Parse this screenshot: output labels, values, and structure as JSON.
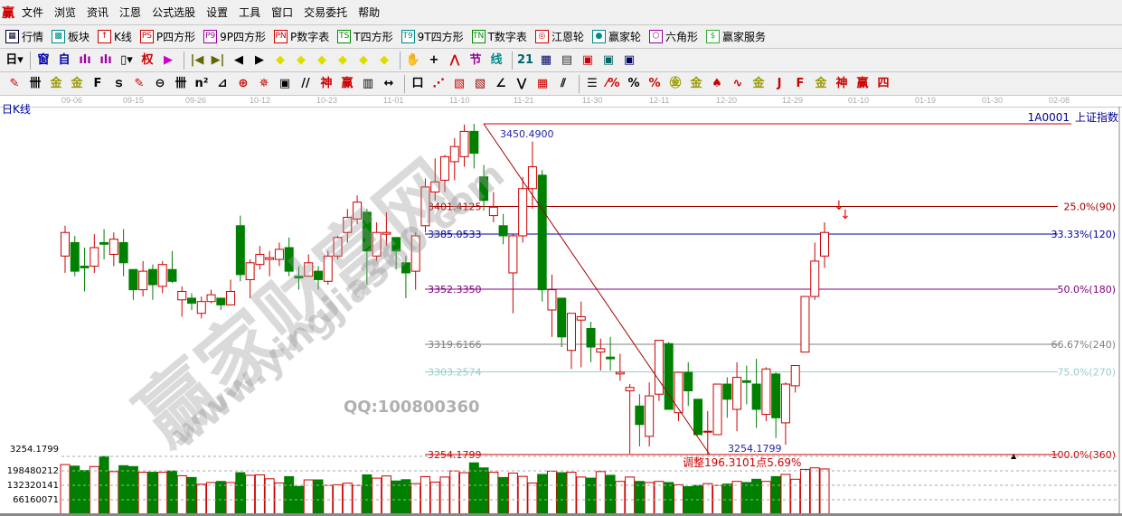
{
  "menu": {
    "logo": "赢",
    "items": [
      "文件",
      "浏览",
      "资讯",
      "江恩",
      "公式选股",
      "设置",
      "工具",
      "窗口",
      "交易委托",
      "帮助"
    ]
  },
  "toolbar1": [
    {
      "icon": "table-icon",
      "glyph": "▦",
      "color": "#003",
      "label": "行情"
    },
    {
      "icon": "blocks-icon",
      "glyph": "▩",
      "color": "#088",
      "label": "板块"
    },
    {
      "icon": "kline-icon",
      "glyph": "↑",
      "color": "#c00",
      "label": "K线"
    },
    {
      "icon": "ps-icon",
      "glyph": "PS",
      "color": "#c00",
      "label": "P四方形"
    },
    {
      "icon": "p9-icon",
      "glyph": "P9",
      "color": "#909",
      "label": "9P四方形"
    },
    {
      "icon": "pn-icon",
      "glyph": "PN",
      "color": "#c00",
      "label": "P数字表"
    },
    {
      "icon": "ts-icon",
      "glyph": "TS",
      "color": "#080",
      "label": "T四方形"
    },
    {
      "icon": "t9-icon",
      "glyph": "T9",
      "color": "#088",
      "label": "9T四方形"
    },
    {
      "icon": "tn-icon",
      "glyph": "TN",
      "color": "#080",
      "label": "T数字表"
    },
    {
      "icon": "gann-wheel-icon",
      "glyph": "◎",
      "color": "#c00",
      "label": "江恩轮"
    },
    {
      "icon": "winner-wheel-icon",
      "glyph": "●",
      "color": "#088",
      "label": "赢家轮"
    },
    {
      "icon": "hexagon-icon",
      "glyph": "⬡",
      "color": "#909",
      "label": "六角形"
    },
    {
      "icon": "dollar-icon",
      "glyph": "$",
      "color": "#3a3",
      "label": "赢家服务"
    }
  ],
  "toolbar2": [
    {
      "icon": "period-day-dropdown",
      "glyph": "日▾",
      "color": "#000"
    },
    {
      "icon": "window-icon",
      "glyph": "窗",
      "color": "#00a"
    },
    {
      "icon": "self-icon",
      "glyph": "自",
      "color": "#00a"
    },
    {
      "icon": "bars3-icon",
      "glyph": "ılı",
      "color": "#909"
    },
    {
      "icon": "bars9-icon",
      "glyph": "ılı",
      "color": "#909"
    },
    {
      "icon": "candle-dropdown",
      "glyph": "▯▾",
      "color": "#000"
    },
    {
      "icon": "rights-icon",
      "glyph": "权",
      "color": "#c00"
    },
    {
      "icon": "flag-icon",
      "glyph": "▶",
      "color": "#c0c"
    },
    {
      "icon": "first-icon",
      "glyph": "|◀",
      "color": "#660"
    },
    {
      "icon": "last-icon",
      "glyph": "▶|",
      "color": "#660"
    },
    {
      "icon": "prev-icon",
      "glyph": "◀",
      "color": "#000"
    },
    {
      "icon": "next-icon",
      "glyph": "▶",
      "color": "#000"
    },
    {
      "icon": "left-diamond-icon",
      "glyph": "◆",
      "color": "#dd0"
    },
    {
      "icon": "right-diamond-icon",
      "glyph": "◆",
      "color": "#dd0"
    },
    {
      "icon": "expand-diamond-icon",
      "glyph": "◆",
      "color": "#dd0"
    },
    {
      "icon": "shrink-diamond-icon",
      "glyph": "◆",
      "color": "#dd0"
    },
    {
      "icon": "zoom-in-diamond-icon",
      "glyph": "◆",
      "color": "#dd0"
    },
    {
      "icon": "zoom-out-diamond-icon",
      "glyph": "◆",
      "color": "#dd0"
    },
    {
      "icon": "hand-icon",
      "glyph": "✋",
      "color": "#000"
    },
    {
      "icon": "crosshair-icon",
      "glyph": "+",
      "color": "#000"
    },
    {
      "icon": "line-icon",
      "glyph": "⋀",
      "color": "#c00"
    },
    {
      "icon": "section-icon",
      "glyph": "节",
      "color": "#909"
    },
    {
      "icon": "line-style-icon",
      "glyph": "线",
      "color": "#088"
    },
    {
      "icon": "calendar-icon",
      "glyph": "21",
      "color": "#066"
    },
    {
      "icon": "calculator-icon",
      "glyph": "▦",
      "color": "#006"
    },
    {
      "icon": "notes-icon",
      "glyph": "▤",
      "color": "#333"
    },
    {
      "icon": "save-icon",
      "glyph": "▣",
      "color": "#c00"
    },
    {
      "icon": "network-icon",
      "glyph": "▣",
      "color": "#066"
    },
    {
      "icon": "print-icon",
      "glyph": "▣",
      "color": "#006"
    }
  ],
  "toolbar3": [
    {
      "icon": "pen-icon",
      "glyph": "✎",
      "color": "#c00"
    },
    {
      "icon": "grid-lines-icon",
      "glyph": "卌",
      "color": "#000"
    },
    {
      "icon": "gold1-icon",
      "glyph": "金",
      "color": "#990"
    },
    {
      "icon": "gold2-icon",
      "glyph": "金",
      "color": "#990"
    },
    {
      "icon": "f-icon",
      "glyph": "F",
      "color": "#000"
    },
    {
      "icon": "spiral-icon",
      "glyph": "ട",
      "color": "#000"
    },
    {
      "icon": "pen-scale-icon",
      "glyph": "✎",
      "color": "#c00"
    },
    {
      "icon": "circle-grid-icon",
      "glyph": "⊖",
      "color": "#000"
    },
    {
      "icon": "lines-icon",
      "glyph": "卌",
      "color": "#000"
    },
    {
      "icon": "n2-icon",
      "glyph": "n²",
      "color": "#000"
    },
    {
      "icon": "angle-icon",
      "glyph": "⊿",
      "color": "#000"
    },
    {
      "icon": "target-icon",
      "glyph": "⊕",
      "color": "#c00"
    },
    {
      "icon": "star-icon",
      "glyph": "✵",
      "color": "#c00"
    },
    {
      "icon": "square-icon",
      "glyph": "▣",
      "color": "#000"
    },
    {
      "icon": "parallel-icon",
      "glyph": "//",
      "color": "#000"
    },
    {
      "icon": "god-icon",
      "glyph": "神",
      "color": "#c00"
    },
    {
      "icon": "win-icon",
      "glyph": "赢",
      "color": "#c00"
    },
    {
      "icon": "calendar-grid-icon",
      "glyph": "▥",
      "color": "#000"
    },
    {
      "icon": "width-icon",
      "glyph": "↔",
      "color": "#000"
    },
    {
      "icon": "box-icon",
      "glyph": "口",
      "color": "#000"
    },
    {
      "icon": "fan-icon",
      "glyph": "⋰",
      "color": "#c00"
    },
    {
      "icon": "box-fan-icon",
      "glyph": "▧",
      "color": "#c00"
    },
    {
      "icon": "box-fan2-icon",
      "glyph": "▧",
      "color": "#900"
    },
    {
      "icon": "angle-fan-icon",
      "glyph": "∠",
      "color": "#000"
    },
    {
      "icon": "wave-icon",
      "glyph": "⋁",
      "color": "#000"
    },
    {
      "icon": "grid-icon",
      "glyph": "▦",
      "color": "#c00"
    },
    {
      "icon": "slash-lines-icon",
      "glyph": "⫽",
      "color": "#000"
    },
    {
      "icon": "ruler-icon",
      "glyph": "☰",
      "color": "#000"
    },
    {
      "icon": "percent-fan-icon",
      "glyph": "⁄%",
      "color": "#c00"
    },
    {
      "icon": "percent-icon",
      "glyph": "%",
      "color": "#000"
    },
    {
      "icon": "percent-lines-icon",
      "glyph": "%",
      "color": "#c00"
    },
    {
      "icon": "gold-circle-icon",
      "glyph": "㊎",
      "color": "#990"
    },
    {
      "icon": "gold-lines-icon",
      "glyph": "金",
      "color": "#990"
    },
    {
      "icon": "rocket-icon",
      "glyph": "♠",
      "color": "#c00"
    },
    {
      "icon": "wave2-icon",
      "glyph": "∿",
      "color": "#c00"
    },
    {
      "icon": "gold3-icon",
      "glyph": "金",
      "color": "#990"
    },
    {
      "icon": "j-fan-icon",
      "glyph": "J",
      "color": "#c00"
    },
    {
      "icon": "f-fan-icon",
      "glyph": "F",
      "color": "#c00"
    },
    {
      "icon": "gold-fan-icon",
      "glyph": "金",
      "color": "#990"
    },
    {
      "icon": "god-fan-icon",
      "glyph": "神",
      "color": "#c00"
    },
    {
      "icon": "win-fan-icon",
      "glyph": "赢",
      "color": "#c00"
    },
    {
      "icon": "four-fan-icon",
      "glyph": "四",
      "color": "#c00"
    }
  ],
  "chart_header": {
    "title": "日K线",
    "code": "1A0001",
    "name": "上证指数"
  },
  "watermark": {
    "brand": "赢家财富网",
    "url": "www.yingjia360.com",
    "qq": "QQ:100800360"
  },
  "chart_data": {
    "type": "candlestick",
    "date_ticks": [
      "09-06",
      "09-15",
      "09-26",
      "10-12",
      "10-23",
      "11-01",
      "11-10",
      "11-21",
      "11-30",
      "12-11",
      "12-20",
      "12-29",
      "01-10",
      "01-19",
      "01-30",
      "02-08"
    ],
    "ohlc": [
      [
        3372,
        3390,
        3362,
        3386
      ],
      [
        3380,
        3384,
        3360,
        3363
      ],
      [
        3366,
        3377,
        3351,
        3365
      ],
      [
        3366,
        3385,
        3362,
        3377
      ],
      [
        3380,
        3388,
        3370,
        3379
      ],
      [
        3373,
        3386,
        3366,
        3382
      ],
      [
        3380,
        3388,
        3360,
        3368
      ],
      [
        3364,
        3364,
        3346,
        3352
      ],
      [
        3352,
        3369,
        3348,
        3363
      ],
      [
        3364,
        3367,
        3346,
        3355
      ],
      [
        3354,
        3369,
        3350,
        3367
      ],
      [
        3364,
        3375,
        3356,
        3357
      ],
      [
        3346,
        3354,
        3336,
        3351
      ],
      [
        3347,
        3350,
        3340,
        3344
      ],
      [
        3338,
        3348,
        3335,
        3345
      ],
      [
        3345,
        3352,
        3344,
        3349
      ],
      [
        3347,
        3347,
        3340,
        3343
      ],
      [
        3343,
        3358,
        3343,
        3351
      ],
      [
        3390,
        3396,
        3357,
        3361
      ],
      [
        3358,
        3370,
        3347,
        3368
      ],
      [
        3367,
        3378,
        3364,
        3373
      ],
      [
        3370,
        3375,
        3360,
        3371
      ],
      [
        3370,
        3380,
        3366,
        3376
      ],
      [
        3377,
        3383,
        3360,
        3363
      ],
      [
        3360,
        3366,
        3352,
        3359
      ],
      [
        3360,
        3373,
        3360,
        3368
      ],
      [
        3363,
        3366,
        3352,
        3358
      ],
      [
        3357,
        3375,
        3355,
        3372
      ],
      [
        3372,
        3384,
        3370,
        3383
      ],
      [
        3386,
        3400,
        3380,
        3395
      ],
      [
        3394,
        3408,
        3391,
        3404
      ],
      [
        3398,
        3400,
        3355,
        3375
      ],
      [
        3372,
        3392,
        3369,
        3386
      ],
      [
        3385,
        3398,
        3378,
        3386
      ],
      [
        3383,
        3383,
        3364,
        3375
      ],
      [
        3368,
        3372,
        3347,
        3362
      ],
      [
        3363,
        3386,
        3352,
        3384
      ],
      [
        3390,
        3418,
        3386,
        3413
      ],
      [
        3410,
        3430,
        3405,
        3416
      ],
      [
        3417,
        3432,
        3410,
        3431
      ],
      [
        3428,
        3442,
        3417,
        3437
      ],
      [
        3431,
        3450,
        3425,
        3446
      ],
      [
        3446,
        3450.49,
        3424,
        3433
      ],
      [
        3419,
        3426,
        3399,
        3405
      ],
      [
        3396,
        3410,
        3392,
        3401
      ],
      [
        3390,
        3397,
        3379,
        3384
      ],
      [
        3362,
        3385,
        3338,
        3384
      ],
      [
        3384,
        3419,
        3380,
        3412
      ],
      [
        3412,
        3440,
        3400,
        3425
      ],
      [
        3420,
        3423,
        3345,
        3352
      ],
      [
        3340,
        3361,
        3324,
        3352
      ],
      [
        3347,
        3347,
        3318,
        3324
      ],
      [
        3316,
        3338,
        3305,
        3338
      ],
      [
        3334,
        3345,
        3306,
        3336
      ],
      [
        3329,
        3333,
        3309,
        3318
      ],
      [
        3315,
        3323,
        3304,
        3317
      ],
      [
        3312,
        3324,
        3304,
        3311
      ],
      [
        3302,
        3314,
        3298,
        3303
      ],
      [
        3292,
        3296,
        3254.7,
        3294
      ],
      [
        3283,
        3290,
        3259,
        3272
      ],
      [
        3265,
        3297,
        3259,
        3289
      ],
      [
        3290,
        3322,
        3286,
        3322
      ],
      [
        3320,
        3321,
        3281,
        3281
      ],
      [
        3279,
        3303,
        3274,
        3303
      ],
      [
        3303,
        3309,
        3283,
        3292
      ],
      [
        3287,
        3287,
        3266,
        3266
      ],
      [
        3268,
        3280,
        3254.18,
        3268
      ],
      [
        3266,
        3296,
        3266,
        3296
      ],
      [
        3296,
        3300,
        3276,
        3287
      ],
      [
        3281,
        3309,
        3268,
        3300
      ],
      [
        3298,
        3307,
        3284,
        3297
      ],
      [
        3296,
        3311,
        3270,
        3281
      ],
      [
        3278,
        3306,
        3274,
        3305
      ],
      [
        3302,
        3303,
        3264,
        3276
      ],
      [
        3273,
        3297,
        3260,
        3296
      ],
      [
        3295,
        3307,
        3291,
        3307
      ],
      [
        3315,
        3348,
        3315,
        3348
      ],
      [
        3348,
        3380,
        3346,
        3369
      ],
      [
        3372,
        3392,
        3365,
        3386
      ]
    ],
    "volume": [
      227,
      220,
      200,
      218,
      264,
      195,
      222,
      218,
      192,
      192,
      192,
      198,
      176,
      168,
      137,
      145,
      150,
      145,
      190,
      178,
      180,
      162,
      143,
      172,
      127,
      157,
      157,
      132,
      135,
      142,
      132,
      180,
      165,
      175,
      152,
      158,
      140,
      172,
      147,
      170,
      198,
      190,
      235,
      212,
      192,
      168,
      188,
      173,
      143,
      182,
      197,
      190,
      192,
      170,
      165,
      195,
      178,
      150,
      170,
      150,
      145,
      150,
      145,
      135,
      126,
      132,
      140,
      132,
      138,
      150,
      145,
      160,
      150,
      172,
      182,
      160,
      205,
      212,
      207
    ],
    "volume_unit": 1000000,
    "volume_ticks": [
      "198480212",
      "132320141",
      "66160071"
    ],
    "volume_top_label": "3254.1799",
    "high_label": "3450.4900",
    "low_label": "3254.1799",
    "adjust_label": "调整196.3101点5.69%",
    "fib_levels": [
      {
        "price": 3401.4125,
        "price_label": "3401.4125",
        "label": "25.0%(90)",
        "color": "#a00000"
      },
      {
        "price": 3385.0533,
        "price_label": "3385.0533",
        "label": "33.33%(120)",
        "color": "#0000a0"
      },
      {
        "price": 3352.335,
        "price_label": "3352.3350",
        "label": "50.0%(180)",
        "color": "#800080"
      },
      {
        "price": 3319.6166,
        "price_label": "3319.6166",
        "label": "66.67%(240)",
        "color": "#808080"
      },
      {
        "price": 3303.2574,
        "price_label": "3303.2574",
        "label": "75.0%(270)",
        "color": "#99cccc"
      },
      {
        "price": 3254.1799,
        "price_label": "3254.1799",
        "label": "100.0%(360)",
        "color": "#cc0000"
      }
    ],
    "high_price": 3450.49,
    "low_price": 3254.1799,
    "up_color": "#cc0000",
    "down_color": "#008000"
  }
}
